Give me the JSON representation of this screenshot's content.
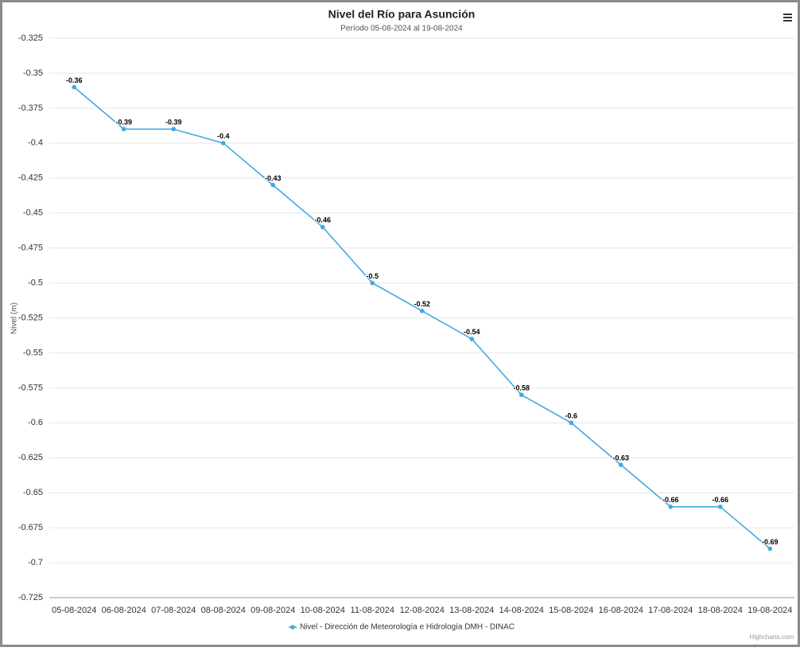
{
  "chart_data": {
    "type": "line",
    "title": "Nivel del Río para Asunción",
    "subtitle": "Período 05-08-2024 al 19-08-2024",
    "y_label": "Nivel (m)",
    "categories": [
      "05-08-2024",
      "06-08-2024",
      "07-08-2024",
      "08-08-2024",
      "09-08-2024",
      "10-08-2024",
      "11-08-2024",
      "12-08-2024",
      "13-08-2024",
      "14-08-2024",
      "15-08-2024",
      "16-08-2024",
      "17-08-2024",
      "18-08-2024",
      "19-08-2024"
    ],
    "series": [
      {
        "name": "Nivel - Dirección de Meteorología e Hidrología DMH - DINAC",
        "color": "#41a9e1",
        "values": [
          -0.36,
          -0.39,
          -0.39,
          -0.4,
          -0.43,
          -0.46,
          -0.5,
          -0.52,
          -0.54,
          -0.58,
          -0.6,
          -0.63,
          -0.66,
          -0.66,
          -0.69
        ]
      }
    ],
    "ylim": [
      -0.725,
      -0.325
    ],
    "yticks": [
      -0.325,
      -0.35,
      -0.375,
      -0.4,
      -0.425,
      -0.45,
      -0.475,
      -0.5,
      -0.525,
      -0.55,
      -0.575,
      -0.6,
      -0.625,
      -0.65,
      -0.675,
      -0.7,
      -0.725
    ],
    "grid": true,
    "data_labels": true,
    "credits": "Highcharts.com"
  }
}
